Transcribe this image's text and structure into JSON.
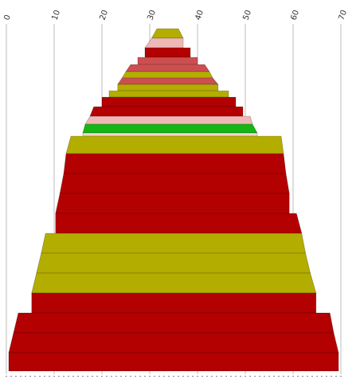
{
  "chart_data": {
    "type": "area",
    "x_axis": {
      "ticks": [
        0,
        10,
        20,
        30,
        40,
        50,
        60,
        70
      ],
      "tick_labels": [
        "0",
        "10",
        "20",
        "30",
        "40",
        "50",
        "60",
        "70"
      ],
      "range": [
        0,
        70
      ],
      "label_rotation_deg": -70,
      "label_position": "top"
    },
    "grid": "vertical",
    "palette": {
      "dark_red": "#b30000",
      "mid_red": "#cc4f4f",
      "pink": "#f0b7b7",
      "olive": "#b3ad00",
      "green": "#14b614",
      "light_pink": "#f7d2d2"
    },
    "layers": [
      {
        "left": 31.5,
        "right": 36.0,
        "color": "olive"
      },
      {
        "left": 30.4,
        "right": 37.0,
        "color": "pink"
      },
      {
        "left": 29.0,
        "right": 38.5,
        "color": "dark_red"
      },
      {
        "left": 27.5,
        "right": 40.0,
        "color": "mid_red"
      },
      {
        "left": 26.0,
        "right": 41.5,
        "color": "mid_red"
      },
      {
        "left": 25.0,
        "right": 42.5,
        "color": "olive"
      },
      {
        "left": 24.2,
        "right": 43.2,
        "color": "mid_red"
      },
      {
        "left": 23.3,
        "right": 44.3,
        "color": "olive"
      },
      {
        "left": 21.5,
        "right": 46.5,
        "color": "olive"
      },
      {
        "left": 20.0,
        "right": 48.0,
        "color": "dark_red"
      },
      {
        "left": 18.3,
        "right": 49.5,
        "color": "dark_red"
      },
      {
        "left": 17.5,
        "right": 51.0,
        "color": "pink"
      },
      {
        "left": 16.5,
        "right": 51.5,
        "color": "green"
      },
      {
        "left": 16.0,
        "right": 52.5,
        "color": "light_pink"
      },
      {
        "left": 13.5,
        "right": 57.5,
        "color": "olive"
      },
      {
        "left": 12.5,
        "right": 58.0,
        "color": "dark_red"
      },
      {
        "left": 12.0,
        "right": 58.5,
        "color": "dark_red"
      },
      {
        "left": 11.2,
        "right": 59.2,
        "color": "dark_red"
      },
      {
        "left": 10.3,
        "right": 60.7,
        "color": "dark_red"
      },
      {
        "left": 8.2,
        "right": 61.8,
        "color": "olive"
      },
      {
        "left": 7.3,
        "right": 62.6,
        "color": "olive"
      },
      {
        "left": 6.3,
        "right": 63.6,
        "color": "olive"
      },
      {
        "left": 5.3,
        "right": 64.8,
        "color": "dark_red"
      },
      {
        "left": 2.5,
        "right": 67.7,
        "color": "dark_red"
      },
      {
        "left": 1.5,
        "right": 68.5,
        "color": "dark_red"
      },
      {
        "left": 0.5,
        "right": 69.5,
        "color": "dark_red"
      }
    ]
  }
}
